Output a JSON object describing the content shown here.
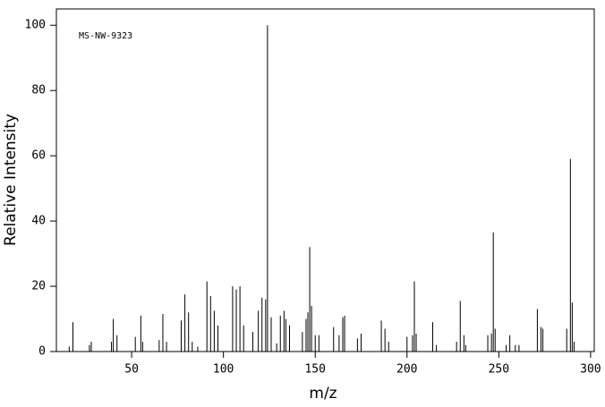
{
  "chart_data": {
    "type": "stem",
    "annotation": "MS-NW-9323",
    "xlabel": "m/z",
    "ylabel": "Relative Intensity",
    "color": "#000000",
    "xlim": [
      9,
      302
    ],
    "ylim": [
      0,
      105
    ],
    "xticks": [
      50,
      100,
      150,
      200,
      250,
      300
    ],
    "yticks": [
      0,
      20,
      40,
      60,
      80,
      100
    ],
    "x": [
      16,
      18,
      27,
      28,
      39,
      40,
      42,
      52,
      55,
      56,
      65,
      67,
      69,
      77,
      79,
      81,
      83,
      86,
      91,
      93,
      95,
      97,
      105,
      107,
      109,
      111,
      116,
      119,
      121,
      123,
      124,
      126,
      129,
      131,
      133,
      134,
      136,
      143,
      145,
      146,
      147,
      148,
      150,
      152,
      160,
      163,
      165,
      166,
      173,
      175,
      186,
      188,
      190,
      200,
      203,
      204,
      205,
      214,
      216,
      227,
      229,
      231,
      232,
      244,
      246,
      247,
      248,
      254,
      256,
      259,
      261,
      271,
      273,
      274,
      287,
      289,
      290,
      291
    ],
    "values": [
      1.5,
      9,
      2,
      3,
      3,
      10,
      5,
      4.5,
      11,
      3,
      3.5,
      11.5,
      3,
      9.5,
      17.5,
      12,
      3,
      1.5,
      21.5,
      17,
      12.5,
      8,
      20,
      19,
      20,
      8,
      6,
      12.5,
      16.5,
      16,
      100,
      10.5,
      2.5,
      11,
      12.5,
      10,
      8,
      6,
      10,
      12,
      32,
      14,
      5,
      5,
      7.5,
      5,
      10.5,
      11,
      4,
      5.5,
      9.5,
      7,
      3,
      4.5,
      5,
      21.5,
      5.5,
      9,
      2,
      3,
      15.5,
      5,
      2,
      5,
      5.5,
      36.5,
      7,
      2,
      5,
      2,
      2,
      13,
      7.5,
      7,
      7,
      59,
      15,
      3
    ]
  }
}
